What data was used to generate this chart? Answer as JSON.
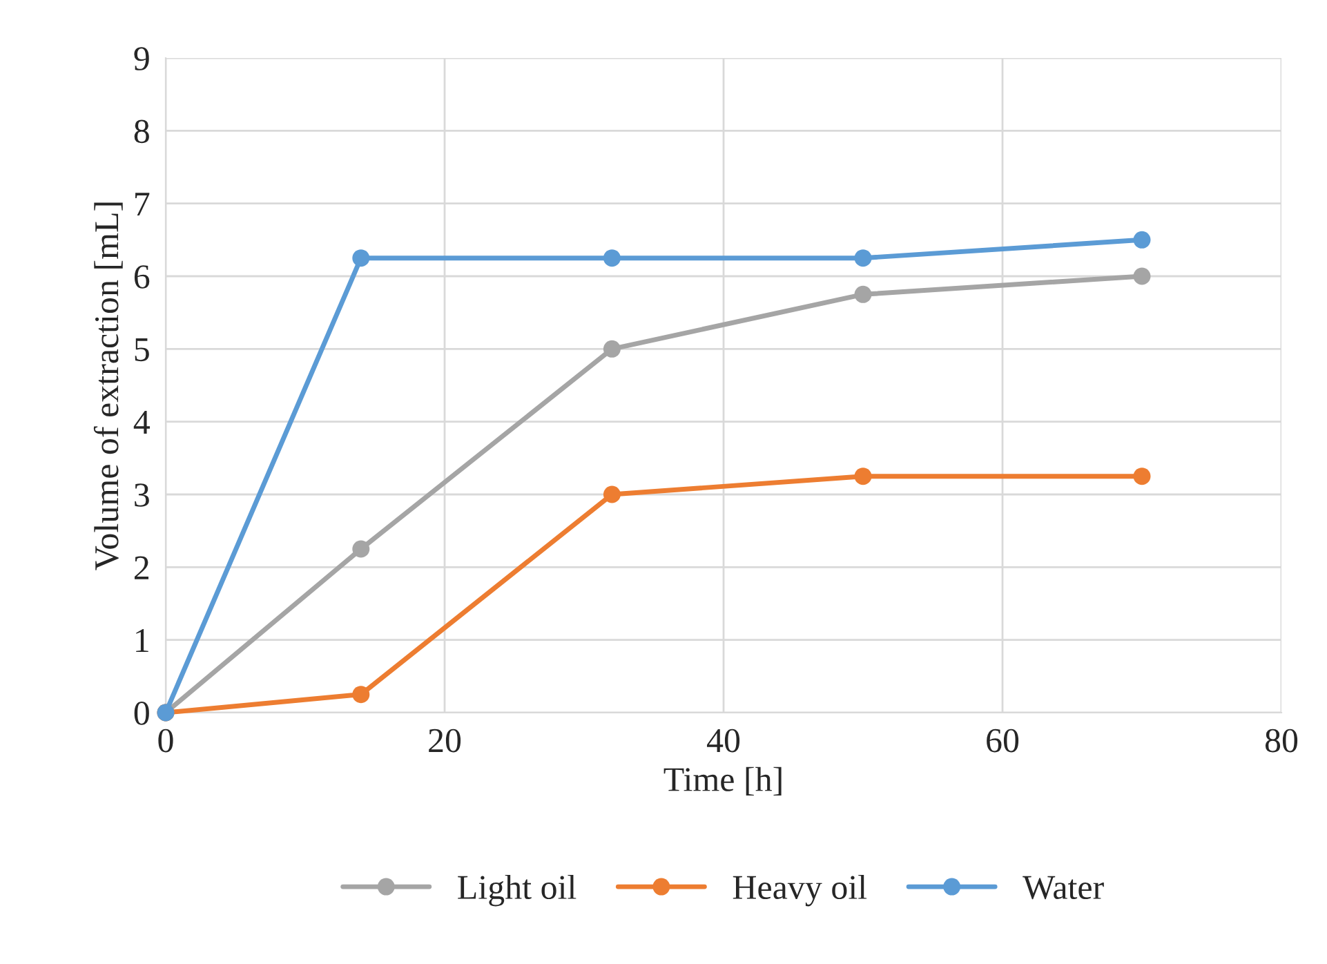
{
  "chart_data": {
    "type": "line",
    "xlabel": "Time [h]",
    "ylabel": "Volume of extraction [mL]",
    "x": [
      0,
      14,
      32,
      50,
      70
    ],
    "series": [
      {
        "name": "Light oil",
        "color": "#a5a5a5",
        "values": [
          0,
          2.25,
          5,
          5.75,
          6
        ]
      },
      {
        "name": "Heavy oil",
        "color": "#ed7d31",
        "values": [
          0,
          0.25,
          3,
          3.25,
          3.25
        ]
      },
      {
        "name": "Water",
        "color": "#5b9bd5",
        "values": [
          0,
          6.25,
          6.25,
          6.25,
          6.5
        ]
      }
    ],
    "xlim": [
      0,
      80
    ],
    "xticks": [
      0,
      20,
      40,
      60,
      80
    ],
    "ylim": [
      0,
      9
    ],
    "yticks": [
      0,
      1,
      2,
      3,
      4,
      5,
      6,
      7,
      8,
      9
    ],
    "grid": true,
    "legend": "bottom",
    "marker": "circle",
    "line_style": "solid"
  }
}
